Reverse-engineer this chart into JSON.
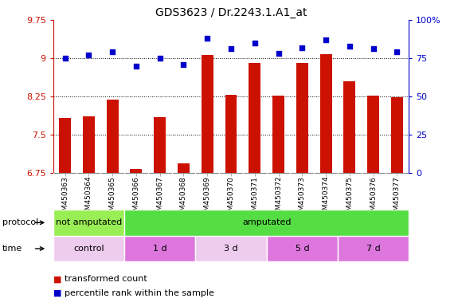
{
  "title": "GDS3623 / Dr.2243.1.A1_at",
  "samples": [
    "GSM450363",
    "GSM450364",
    "GSM450365",
    "GSM450366",
    "GSM450367",
    "GSM450368",
    "GSM450369",
    "GSM450370",
    "GSM450371",
    "GSM450372",
    "GSM450373",
    "GSM450374",
    "GSM450375",
    "GSM450376",
    "GSM450377"
  ],
  "bar_values": [
    7.82,
    7.86,
    8.18,
    6.82,
    7.84,
    6.93,
    9.06,
    8.28,
    8.9,
    8.27,
    8.9,
    9.08,
    8.55,
    8.26,
    8.24
  ],
  "dot_values": [
    75,
    77,
    79,
    70,
    75,
    71,
    88,
    81,
    85,
    78,
    82,
    87,
    83,
    81,
    79
  ],
  "bar_color": "#cc1100",
  "dot_color": "#0000cc",
  "ylim_left": [
    6.75,
    9.75
  ],
  "ylim_right": [
    0,
    100
  ],
  "yticks_left": [
    6.75,
    7.5,
    8.25,
    9.0,
    9.75
  ],
  "ytick_labels_left": [
    "6.75",
    "7.5",
    "8.25",
    "9",
    "9.75"
  ],
  "yticks_right": [
    0,
    25,
    50,
    75,
    100
  ],
  "ytick_labels_right": [
    "0",
    "25",
    "50",
    "75",
    "100%"
  ],
  "hlines": [
    7.5,
    8.25,
    9.0
  ],
  "protocol_groups": [
    {
      "label": "not amputated",
      "start": 0,
      "end": 3,
      "color": "#99ee55"
    },
    {
      "label": "amputated",
      "start": 3,
      "end": 15,
      "color": "#55dd44"
    }
  ],
  "time_groups": [
    {
      "label": "control",
      "start": 0,
      "end": 3,
      "color": "#eeccee"
    },
    {
      "label": "1 d",
      "start": 3,
      "end": 6,
      "color": "#dd77dd"
    },
    {
      "label": "3 d",
      "start": 6,
      "end": 9,
      "color": "#eeccee"
    },
    {
      "label": "5 d",
      "start": 9,
      "end": 12,
      "color": "#dd77dd"
    },
    {
      "label": "7 d",
      "start": 12,
      "end": 15,
      "color": "#dd77dd"
    }
  ],
  "legend_red_label": "transformed count",
  "legend_blue_label": "percentile rank within the sample",
  "xtick_bg": "#cccccc",
  "background_color": "#ffffff",
  "row_label_fontsize": 8,
  "tick_fontsize": 8,
  "sample_fontsize": 6.5,
  "legend_fontsize": 8,
  "title_fontsize": 10
}
